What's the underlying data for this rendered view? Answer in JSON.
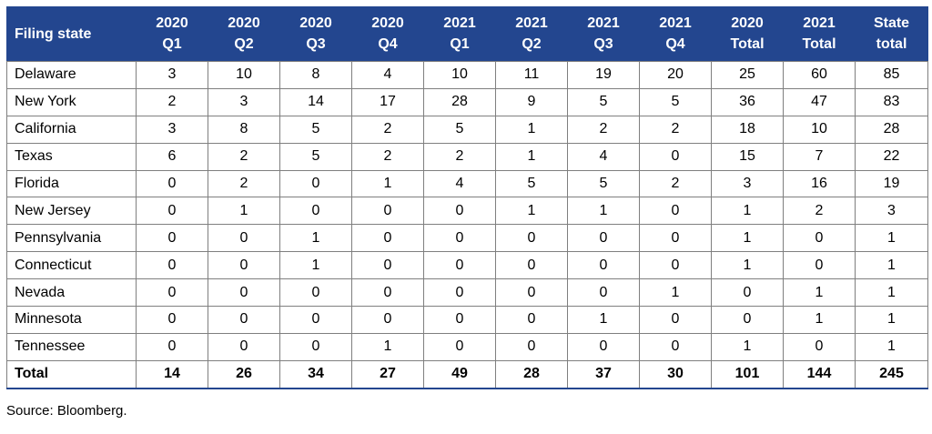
{
  "table": {
    "headers": [
      {
        "l1": "Filing state",
        "l2": ""
      },
      {
        "l1": "2020",
        "l2": "Q1"
      },
      {
        "l1": "2020",
        "l2": "Q2"
      },
      {
        "l1": "2020",
        "l2": "Q3"
      },
      {
        "l1": "2020",
        "l2": "Q4"
      },
      {
        "l1": "2021",
        "l2": "Q1"
      },
      {
        "l1": "2021",
        "l2": "Q2"
      },
      {
        "l1": "2021",
        "l2": "Q3"
      },
      {
        "l1": "2021",
        "l2": "Q4"
      },
      {
        "l1": "2020",
        "l2": "Total"
      },
      {
        "l1": "2021",
        "l2": "Total"
      },
      {
        "l1": "State",
        "l2": "total"
      }
    ],
    "rows": [
      [
        "Delaware",
        "3",
        "10",
        "8",
        "4",
        "10",
        "11",
        "19",
        "20",
        "25",
        "60",
        "85"
      ],
      [
        "New York",
        "2",
        "3",
        "14",
        "17",
        "28",
        "9",
        "5",
        "5",
        "36",
        "47",
        "83"
      ],
      [
        "California",
        "3",
        "8",
        "5",
        "2",
        "5",
        "1",
        "2",
        "2",
        "18",
        "10",
        "28"
      ],
      [
        "Texas",
        "6",
        "2",
        "5",
        "2",
        "2",
        "1",
        "4",
        "0",
        "15",
        "7",
        "22"
      ],
      [
        "Florida",
        "0",
        "2",
        "0",
        "1",
        "4",
        "5",
        "5",
        "2",
        "3",
        "16",
        "19"
      ],
      [
        "New Jersey",
        "0",
        "1",
        "0",
        "0",
        "0",
        "1",
        "1",
        "0",
        "1",
        "2",
        "3"
      ],
      [
        "Pennsylvania",
        "0",
        "0",
        "1",
        "0",
        "0",
        "0",
        "0",
        "0",
        "1",
        "0",
        "1"
      ],
      [
        "Connecticut",
        "0",
        "0",
        "1",
        "0",
        "0",
        "0",
        "0",
        "0",
        "1",
        "0",
        "1"
      ],
      [
        "Nevada",
        "0",
        "0",
        "0",
        "0",
        "0",
        "0",
        "0",
        "1",
        "0",
        "1",
        "1"
      ],
      [
        "Minnesota",
        "0",
        "0",
        "0",
        "0",
        "0",
        "0",
        "1",
        "0",
        "0",
        "1",
        "1"
      ],
      [
        "Tennessee",
        "0",
        "0",
        "0",
        "1",
        "0",
        "0",
        "0",
        "0",
        "1",
        "0",
        "1"
      ]
    ],
    "total_row": [
      "Total",
      "14",
      "26",
      "34",
      "27",
      "49",
      "28",
      "37",
      "30",
      "101",
      "144",
      "245"
    ]
  },
  "source": "Source: Bloomberg.",
  "colors": {
    "header_bg": "#23468f",
    "header_text": "#ffffff",
    "grid": "#7f7f7f"
  }
}
